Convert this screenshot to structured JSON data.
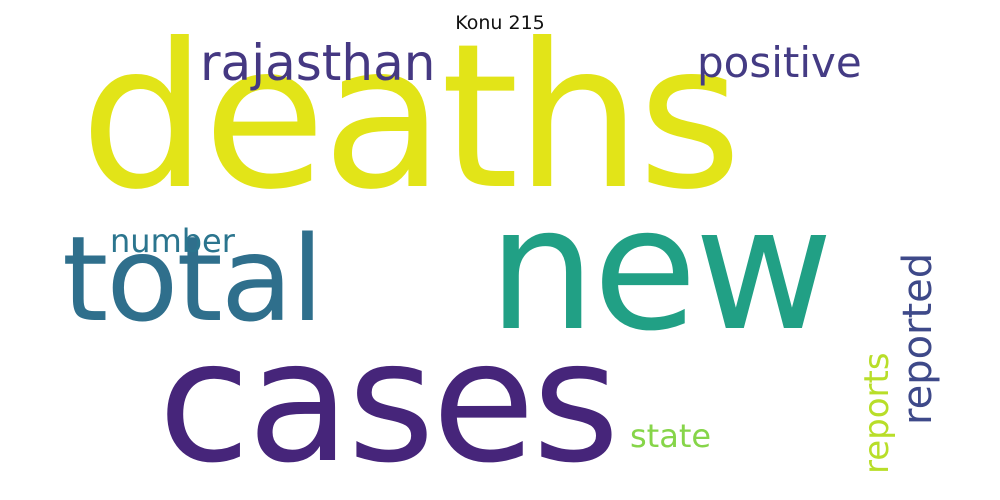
{
  "title": "Konu 215",
  "words": [
    {
      "text": "deaths",
      "color": "#e2e418"
    },
    {
      "text": "new",
      "color": "#21a085"
    },
    {
      "text": "total",
      "color": "#2f6f8c"
    },
    {
      "text": "cases",
      "color": "#46257a"
    },
    {
      "text": "rajasthan",
      "color": "#453882"
    },
    {
      "text": "positive",
      "color": "#443b84"
    },
    {
      "text": "number",
      "color": "#2b758e"
    },
    {
      "text": "reported",
      "color": "#3e4989"
    },
    {
      "text": "reports",
      "color": "#b8de29"
    },
    {
      "text": "state",
      "color": "#86d549"
    }
  ]
}
